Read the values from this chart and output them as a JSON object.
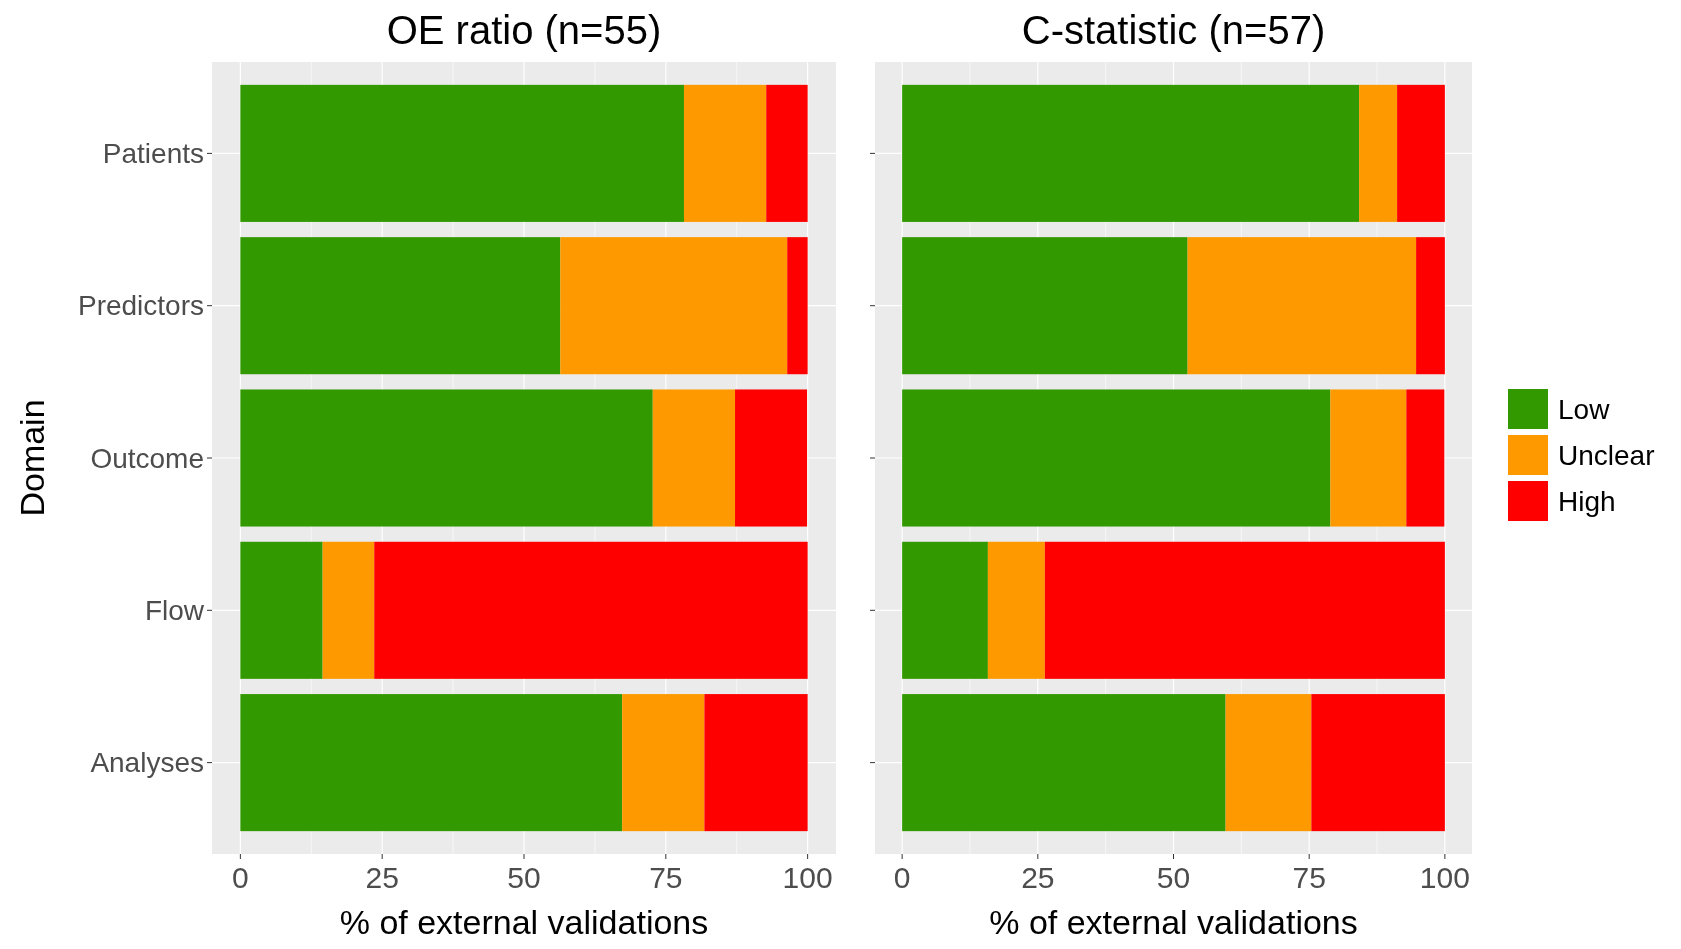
{
  "chart_data": [
    {
      "type": "bar",
      "orientation": "horizontal",
      "stacked": true,
      "title": "OE ratio (n=55)",
      "xlabel": "% of external validations",
      "ylabel": "Domain",
      "categories": [
        "Patients",
        "Predictors",
        "Outcome",
        "Flow",
        "Analyses"
      ],
      "xlim": [
        -5,
        105
      ],
      "xticks": [
        0,
        25,
        50,
        75,
        100
      ],
      "grid": true,
      "legend": false,
      "series": [
        {
          "color": "#339900",
          "values": [
            78.2,
            56.4,
            72.7,
            14.5,
            67.3
          ]
        },
        {
          "color": "#ff9900",
          "values": [
            14.5,
            40.0,
            14.5,
            9.1,
            14.5
          ]
        },
        {
          "color": "#ff0000",
          "values": [
            7.3,
            3.6,
            12.7,
            76.4,
            18.2
          ]
        }
      ]
    },
    {
      "type": "bar",
      "orientation": "horizontal",
      "stacked": true,
      "title": "C-statistic (n=57)",
      "xlabel": "% of external validations",
      "categories": [
        null,
        null,
        null,
        null,
        null
      ],
      "xlim": [
        -5,
        105
      ],
      "xticks": [
        0,
        25,
        50,
        75,
        100
      ],
      "grid": true,
      "legend": "right",
      "tick_labels": "x",
      "series": [
        {
          "name": "Low",
          "color": "#339900",
          "values": [
            84.2,
            52.6,
            78.9,
            15.8,
            59.6
          ]
        },
        {
          "name": "Unclear",
          "color": "#ff9900",
          "values": [
            7.0,
            42.1,
            14.0,
            10.5,
            15.8
          ]
        },
        {
          "name": "High",
          "color": "#ff0000",
          "values": [
            8.8,
            5.3,
            7.0,
            73.7,
            24.6
          ]
        }
      ]
    }
  ]
}
